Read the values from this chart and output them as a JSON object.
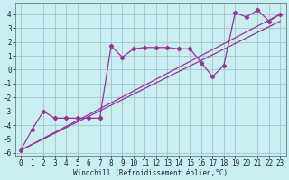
{
  "title": "",
  "xlabel": "Windchill (Refroidissement éolien,°C)",
  "bg_color": "#c8eef0",
  "line_color": "#993399",
  "grid_color": "#a0b8cc",
  "xlim": [
    -0.5,
    23.5
  ],
  "ylim": [
    -6.2,
    4.8
  ],
  "xticks": [
    0,
    1,
    2,
    3,
    4,
    5,
    6,
    7,
    8,
    9,
    10,
    11,
    12,
    13,
    14,
    15,
    16,
    17,
    18,
    19,
    20,
    21,
    22,
    23
  ],
  "yticks": [
    -6,
    -5,
    -4,
    -3,
    -2,
    -1,
    0,
    1,
    2,
    3,
    4
  ],
  "line1_x": [
    0,
    23
  ],
  "line1_y": [
    -5.8,
    4.0
  ],
  "line2_x": [
    0,
    23
  ],
  "line2_y": [
    -5.8,
    3.5
  ],
  "data_x": [
    0,
    1,
    2,
    3,
    4,
    5,
    6,
    7,
    8,
    9,
    10,
    11,
    12,
    13,
    14,
    15,
    16,
    17,
    18,
    19,
    20,
    21,
    22,
    23
  ],
  "data_y": [
    -5.8,
    -4.3,
    -3.0,
    -3.5,
    -3.5,
    -3.5,
    -3.5,
    -3.5,
    1.7,
    0.9,
    1.5,
    1.6,
    1.6,
    1.6,
    1.5,
    1.5,
    0.5,
    -0.5,
    0.3,
    4.1,
    3.8,
    4.3,
    3.5,
    4.0
  ],
  "tick_fontsize": 5.5,
  "xlabel_fontsize": 5.5
}
